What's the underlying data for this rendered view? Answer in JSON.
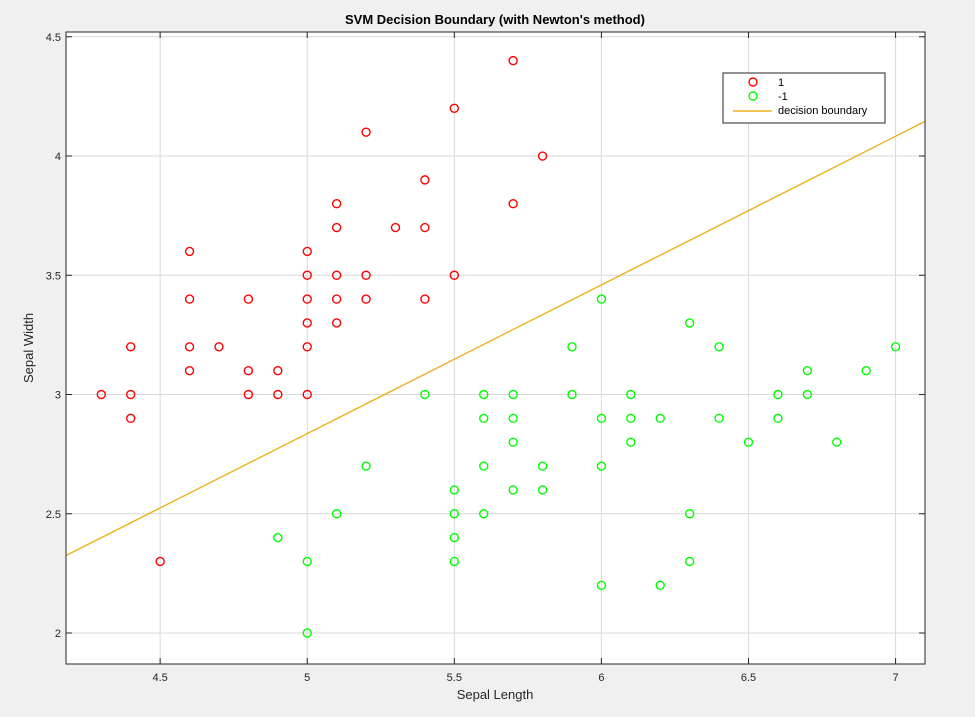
{
  "chart_data": {
    "type": "scatter",
    "title": "SVM Decision Boundary (with Newton's method)",
    "xlabel": "Sepal Length",
    "ylabel": "Sepal Width",
    "xlim": [
      4.18,
      7.1
    ],
    "ylim": [
      1.87,
      4.52
    ],
    "grid": true,
    "legend_position": "top-right",
    "x_ticks": [
      4.5,
      5,
      5.5,
      6,
      6.5,
      7
    ],
    "x_tick_labels": [
      "4.5",
      "5",
      "5.5",
      "6",
      "6.5",
      "7"
    ],
    "y_ticks": [
      2,
      2.5,
      3,
      3.5,
      4,
      4.5
    ],
    "y_tick_labels": [
      "2",
      "2.5",
      "3",
      "3.5",
      "4",
      "4.5"
    ],
    "series": [
      {
        "name": "1",
        "marker": "circle",
        "color": "#ff0000",
        "points": [
          [
            4.3,
            3.0
          ],
          [
            4.4,
            3.2
          ],
          [
            4.4,
            3.0
          ],
          [
            4.4,
            2.9
          ],
          [
            4.5,
            2.3
          ],
          [
            4.6,
            3.6
          ],
          [
            4.6,
            3.4
          ],
          [
            4.6,
            3.2
          ],
          [
            4.6,
            3.1
          ],
          [
            4.7,
            3.2
          ],
          [
            4.8,
            3.4
          ],
          [
            4.8,
            3.1
          ],
          [
            4.8,
            3.0
          ],
          [
            4.9,
            3.1
          ],
          [
            4.9,
            3.0
          ],
          [
            5.0,
            3.6
          ],
          [
            5.0,
            3.5
          ],
          [
            5.0,
            3.4
          ],
          [
            5.0,
            3.3
          ],
          [
            5.0,
            3.2
          ],
          [
            5.0,
            3.0
          ],
          [
            5.1,
            3.8
          ],
          [
            5.1,
            3.7
          ],
          [
            5.1,
            3.5
          ],
          [
            5.1,
            3.4
          ],
          [
            5.1,
            3.3
          ],
          [
            5.2,
            4.1
          ],
          [
            5.2,
            3.5
          ],
          [
            5.2,
            3.4
          ],
          [
            5.3,
            3.7
          ],
          [
            5.4,
            3.9
          ],
          [
            5.4,
            3.7
          ],
          [
            5.4,
            3.4
          ],
          [
            5.5,
            4.2
          ],
          [
            5.5,
            3.5
          ],
          [
            5.7,
            4.4
          ],
          [
            5.7,
            3.8
          ],
          [
            5.8,
            4.0
          ]
        ]
      },
      {
        "name": "-1",
        "marker": "circle",
        "color": "#00ff00",
        "points": [
          [
            4.9,
            2.4
          ],
          [
            5.0,
            2.3
          ],
          [
            5.0,
            2.0
          ],
          [
            5.1,
            2.5
          ],
          [
            5.2,
            2.7
          ],
          [
            5.4,
            3.0
          ],
          [
            5.5,
            2.6
          ],
          [
            5.5,
            2.5
          ],
          [
            5.5,
            2.4
          ],
          [
            5.5,
            2.3
          ],
          [
            5.6,
            3.0
          ],
          [
            5.6,
            2.9
          ],
          [
            5.6,
            2.7
          ],
          [
            5.6,
            2.5
          ],
          [
            5.7,
            3.0
          ],
          [
            5.7,
            2.9
          ],
          [
            5.7,
            2.8
          ],
          [
            5.7,
            2.6
          ],
          [
            5.8,
            2.7
          ],
          [
            5.8,
            2.6
          ],
          [
            5.9,
            3.2
          ],
          [
            5.9,
            3.0
          ],
          [
            6.0,
            3.4
          ],
          [
            6.0,
            2.9
          ],
          [
            6.0,
            2.7
          ],
          [
            6.0,
            2.2
          ],
          [
            6.1,
            3.0
          ],
          [
            6.1,
            2.9
          ],
          [
            6.1,
            2.8
          ],
          [
            6.2,
            2.9
          ],
          [
            6.2,
            2.2
          ],
          [
            6.3,
            3.3
          ],
          [
            6.3,
            2.5
          ],
          [
            6.3,
            2.3
          ],
          [
            6.4,
            3.2
          ],
          [
            6.4,
            2.9
          ],
          [
            6.5,
            2.8
          ],
          [
            6.6,
            3.0
          ],
          [
            6.6,
            2.9
          ],
          [
            6.7,
            3.1
          ],
          [
            6.7,
            3.0
          ],
          [
            6.8,
            2.8
          ],
          [
            6.9,
            3.1
          ],
          [
            7.0,
            3.2
          ]
        ]
      }
    ],
    "line": {
      "name": "decision boundary",
      "color": "#edb120",
      "x": [
        4.18,
        7.1
      ],
      "y": [
        2.325,
        4.145
      ]
    }
  }
}
